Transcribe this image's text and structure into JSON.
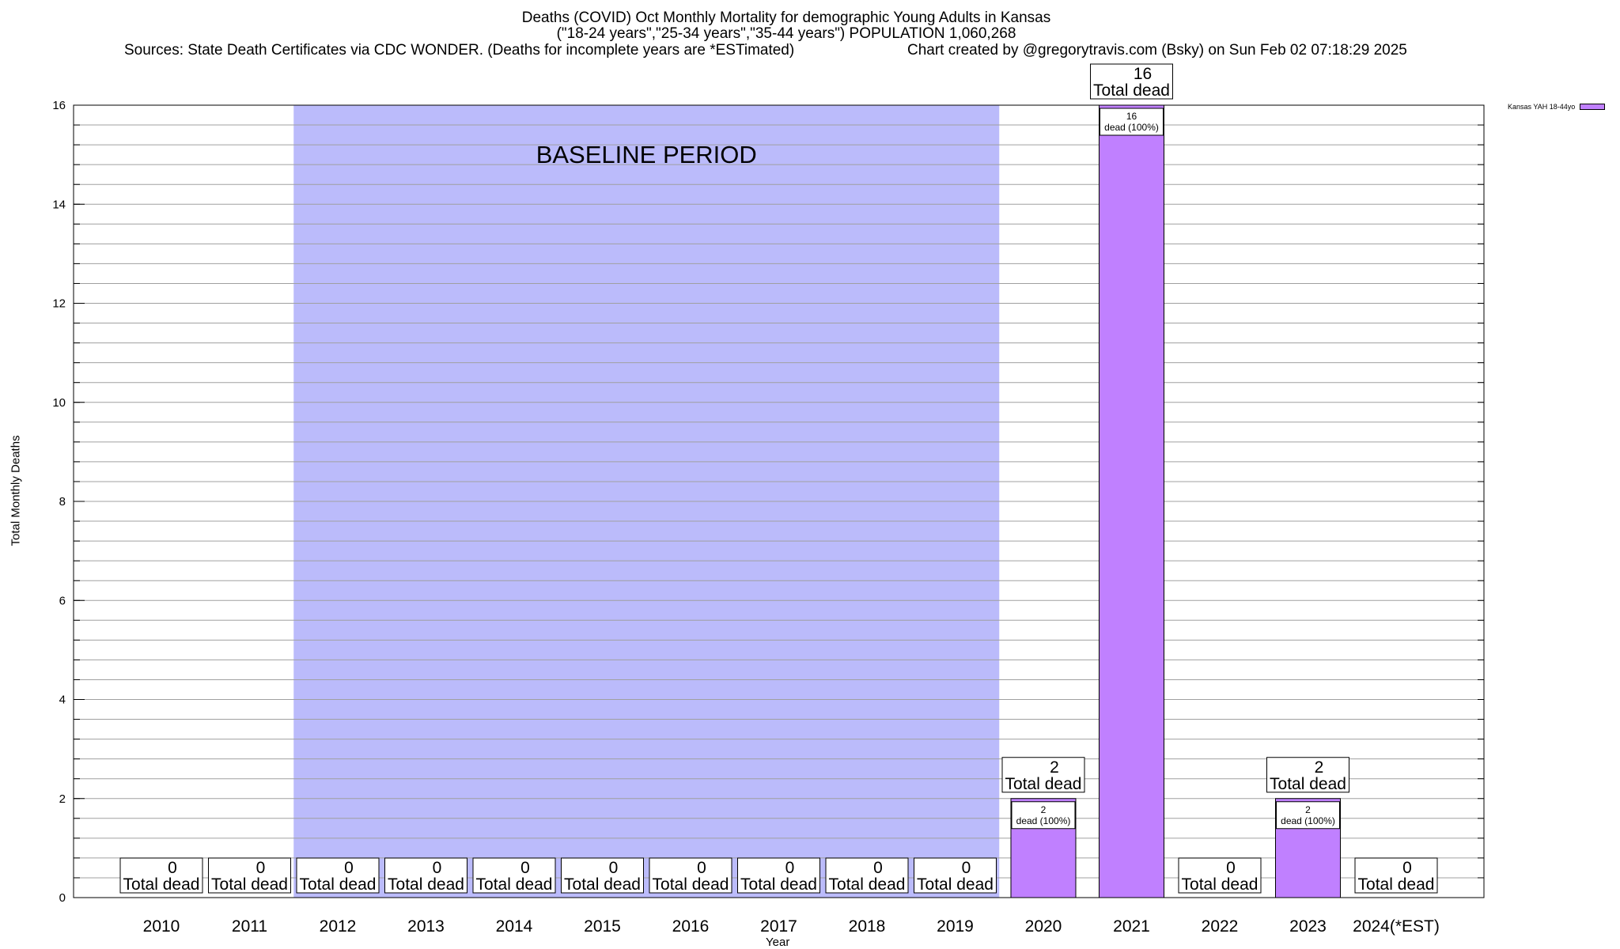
{
  "chart_data": {
    "type": "bar",
    "title": "Deaths (COVID) Oct Monthly Mortality for demographic Young Adults in Kansas",
    "subtitle": "(\"18-24 years\",\"25-34 years\",\"35-44 years\") POPULATION 1,060,268",
    "sources": "Sources: State Death Certificates via CDC WONDER. (Deaths for incomplete years are *ESTimated)",
    "credit": "Chart created by @gregorytravis.com (Bsky) on Sun Feb 02 07:18:29 2025",
    "xlabel": "Year",
    "ylabel": "Total Monthly Deaths",
    "ylim": [
      0,
      16
    ],
    "yticks": [
      0,
      2,
      4,
      6,
      8,
      10,
      12,
      14,
      16
    ],
    "categories": [
      "2010",
      "2011",
      "2012",
      "2013",
      "2014",
      "2015",
      "2016",
      "2017",
      "2018",
      "2019",
      "2020",
      "2021",
      "2022",
      "2023",
      "2024(*EST)"
    ],
    "series": [
      {
        "name": "Kansas YAH 18-44yo",
        "values": [
          0,
          0,
          0,
          0,
          0,
          0,
          0,
          0,
          0,
          0,
          2,
          16,
          0,
          2,
          0
        ]
      }
    ],
    "total_label": "Total dead",
    "inner_label": "dead (100%)",
    "baseline": {
      "label": "BASELINE PERIOD",
      "from": "2012",
      "to": "2019"
    },
    "grid": true,
    "legend_position": "top-right",
    "colors": {
      "bar": "#c080ff",
      "baseline": "#bbbbfb",
      "grid": "#a0a0a0"
    }
  }
}
